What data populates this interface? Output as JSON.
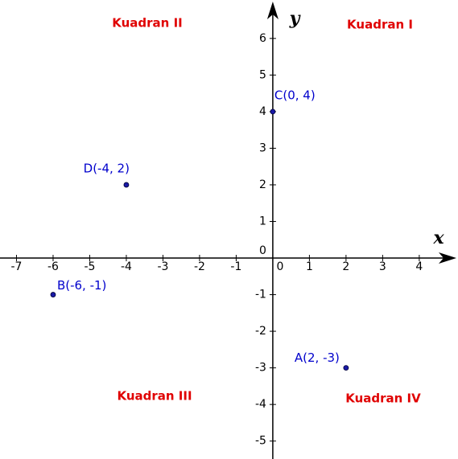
{
  "chart_data": {
    "type": "scatter",
    "x_label": "x",
    "y_label": "y",
    "annotations": [
      "Kuadran I",
      "Kuadran II",
      "Kuadran III",
      "Kuadran IV"
    ],
    "x": [
      2,
      -6,
      0,
      -4
    ],
    "values": [
      -3,
      -1,
      4,
      2
    ],
    "point_labels": [
      "A(2, -3)",
      "B(-6, -1)",
      "C(0, 4)",
      "D(-4, 2)"
    ],
    "color": "#1a1aa6",
    "xlim": [
      -7.45,
      4.97
    ],
    "ylim": [
      -5.49,
      7.05
    ],
    "xticks": [
      -7,
      -6,
      -5,
      -4,
      -3,
      -2,
      -1,
      0,
      1,
      2,
      3,
      4
    ],
    "yticks": [
      -5,
      -4,
      -3,
      -2,
      -1,
      0,
      1,
      2,
      3,
      4,
      5,
      6
    ],
    "grid": false
  }
}
